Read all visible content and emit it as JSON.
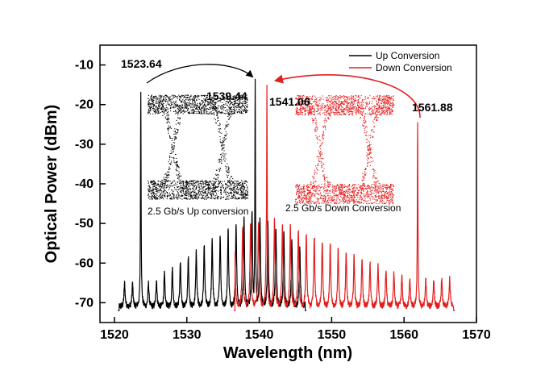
{
  "chart_data": {
    "type": "line",
    "title": "",
    "xlabel": "Wavelength (nm)",
    "ylabel": "Optical Power (dBm)",
    "xlim": [
      1518,
      1570
    ],
    "ylim": [
      -75,
      -5
    ],
    "x_ticks": [
      "1520",
      "1530",
      "1540",
      "1550",
      "1560",
      "1570"
    ],
    "y_ticks": [
      "-10",
      "-20",
      "-30",
      "-40",
      "-50",
      "-60",
      "-70"
    ],
    "grid": false,
    "legend": "top-right",
    "series": [
      {
        "name": "Up Conversion",
        "color": "#000000",
        "x_range": [
          1520.5,
          1546.5
        ],
        "floor_dbm": -71,
        "pump_peaks": [
          {
            "x": 1523.64,
            "y": -16
          },
          {
            "x": 1539.44,
            "y": -13.5
          }
        ],
        "comb_spacing_nm": 1.1,
        "comb_envelope_peak": {
          "x": 1539.0,
          "y": -47
        },
        "comb_envelope_min_dbm": -65
      },
      {
        "name": "Down Conversion",
        "color": "#e41e1e",
        "x_range": [
          1536.5,
          1567.0
        ],
        "floor_dbm": -71,
        "pump_peaks": [
          {
            "x": 1541.06,
            "y": -15.5
          },
          {
            "x": 1561.88,
            "y": -24
          }
        ],
        "comb_spacing_nm": 1.1,
        "comb_envelope_peak": {
          "x": 1541.0,
          "y": -48
        },
        "comb_envelope_min_dbm": -64
      }
    ],
    "annotations": [
      {
        "text": "1523.64",
        "x": 1523.64
      },
      {
        "text": "1539.44",
        "x": 1539.44
      },
      {
        "text": "1541.06",
        "x": 1541.06
      },
      {
        "text": "1561.88",
        "x": 1561.88
      }
    ],
    "insets": [
      {
        "label": "2.5 Gb/s Up conversion",
        "color": "#000000"
      },
      {
        "label": "2.5 Gb/s Down Conversion",
        "color": "#e41e1e"
      }
    ]
  }
}
